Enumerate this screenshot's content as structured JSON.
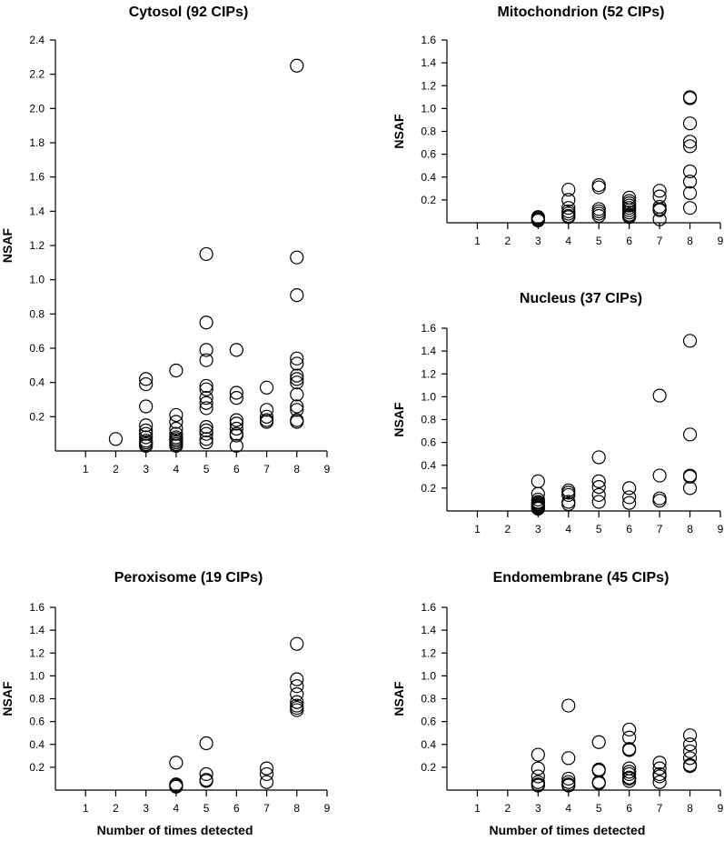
{
  "chart_data": [
    {
      "type": "scatter",
      "title": "Cytosol (92 CIPs)",
      "xlabel": "",
      "ylabel": "NSAF",
      "xlim": [
        0,
        9
      ],
      "ylim": [
        0,
        2.4
      ],
      "xticks": [
        "1",
        "2",
        "3",
        "4",
        "5",
        "6",
        "7",
        "8",
        "9"
      ],
      "yticks": [
        "0.2",
        "0.4",
        "0.6",
        "0.8",
        "1.0",
        "1.2",
        "1.4",
        "1.6",
        "1.8",
        "2.0",
        "2.2",
        "2.4"
      ],
      "points": [
        [
          2,
          0.07
        ],
        [
          3,
          0.42
        ],
        [
          3,
          0.39
        ],
        [
          3,
          0.26
        ],
        [
          3,
          0.15
        ],
        [
          3,
          0.12
        ],
        [
          3,
          0.1
        ],
        [
          3,
          0.08
        ],
        [
          3,
          0.06
        ],
        [
          3,
          0.05
        ],
        [
          3,
          0.04
        ],
        [
          3,
          0.03
        ],
        [
          4,
          0.47
        ],
        [
          4,
          0.21
        ],
        [
          4,
          0.17
        ],
        [
          4,
          0.13
        ],
        [
          4,
          0.1
        ],
        [
          4,
          0.08
        ],
        [
          4,
          0.07
        ],
        [
          4,
          0.06
        ],
        [
          4,
          0.05
        ],
        [
          4,
          0.04
        ],
        [
          4,
          0.03
        ],
        [
          5,
          1.15
        ],
        [
          5,
          0.75
        ],
        [
          5,
          0.59
        ],
        [
          5,
          0.53
        ],
        [
          5,
          0.38
        ],
        [
          5,
          0.36
        ],
        [
          5,
          0.31
        ],
        [
          5,
          0.28
        ],
        [
          5,
          0.25
        ],
        [
          5,
          0.14
        ],
        [
          5,
          0.12
        ],
        [
          5,
          0.1
        ],
        [
          5,
          0.07
        ],
        [
          5,
          0.05
        ],
        [
          6,
          0.59
        ],
        [
          6,
          0.34
        ],
        [
          6,
          0.31
        ],
        [
          6,
          0.18
        ],
        [
          6,
          0.16
        ],
        [
          6,
          0.13
        ],
        [
          6,
          0.1
        ],
        [
          6,
          0.09
        ],
        [
          6,
          0.03
        ],
        [
          7,
          0.37
        ],
        [
          7,
          0.24
        ],
        [
          7,
          0.2
        ],
        [
          7,
          0.18
        ],
        [
          7,
          0.17
        ],
        [
          8,
          2.25
        ],
        [
          8,
          1.13
        ],
        [
          8,
          0.91
        ],
        [
          8,
          0.54
        ],
        [
          8,
          0.51
        ],
        [
          8,
          0.44
        ],
        [
          8,
          0.42
        ],
        [
          8,
          0.4
        ],
        [
          8,
          0.33
        ],
        [
          8,
          0.26
        ],
        [
          8,
          0.24
        ],
        [
          8,
          0.18
        ],
        [
          8,
          0.17
        ]
      ]
    },
    {
      "type": "scatter",
      "title": "Mitochondrion (52 CIPs)",
      "xlabel": "",
      "ylabel": "NSAF",
      "xlim": [
        0,
        9
      ],
      "ylim": [
        0,
        1.6
      ],
      "xticks": [
        "1",
        "2",
        "3",
        "4",
        "5",
        "6",
        "7",
        "8",
        "9"
      ],
      "yticks": [
        "0.2",
        "0.4",
        "0.6",
        "0.8",
        "1.0",
        "1.2",
        "1.4",
        "1.6"
      ],
      "points": [
        [
          3,
          0.05
        ],
        [
          3,
          0.04
        ],
        [
          3,
          0.03
        ],
        [
          3,
          0.02
        ],
        [
          4,
          0.29
        ],
        [
          4,
          0.2
        ],
        [
          4,
          0.13
        ],
        [
          4,
          0.1
        ],
        [
          4,
          0.08
        ],
        [
          4,
          0.06
        ],
        [
          4,
          0.05
        ],
        [
          5,
          0.33
        ],
        [
          5,
          0.31
        ],
        [
          5,
          0.12
        ],
        [
          5,
          0.1
        ],
        [
          5,
          0.08
        ],
        [
          5,
          0.06
        ],
        [
          6,
          0.22
        ],
        [
          6,
          0.19
        ],
        [
          6,
          0.17
        ],
        [
          6,
          0.15
        ],
        [
          6,
          0.13
        ],
        [
          6,
          0.11
        ],
        [
          6,
          0.09
        ],
        [
          6,
          0.07
        ],
        [
          6,
          0.06
        ],
        [
          6,
          0.05
        ],
        [
          7,
          0.28
        ],
        [
          7,
          0.23
        ],
        [
          7,
          0.14
        ],
        [
          7,
          0.12
        ],
        [
          7,
          0.11
        ],
        [
          7,
          0.03
        ],
        [
          8,
          1.1
        ],
        [
          8,
          1.09
        ],
        [
          8,
          0.87
        ],
        [
          8,
          0.71
        ],
        [
          8,
          0.67
        ],
        [
          8,
          0.45
        ],
        [
          8,
          0.36
        ],
        [
          8,
          0.26
        ],
        [
          8,
          0.13
        ]
      ]
    },
    {
      "type": "scatter",
      "title": "Nucleus (37 CIPs)",
      "xlabel": "",
      "ylabel": "NSAF",
      "xlim": [
        0,
        9
      ],
      "ylim": [
        0,
        1.6
      ],
      "xticks": [
        "1",
        "2",
        "3",
        "4",
        "5",
        "6",
        "7",
        "8",
        "9"
      ],
      "yticks": [
        "0.2",
        "0.4",
        "0.6",
        "0.8",
        "1.0",
        "1.2",
        "1.4",
        "1.6"
      ],
      "points": [
        [
          3,
          0.26
        ],
        [
          3,
          0.15
        ],
        [
          3,
          0.1
        ],
        [
          3,
          0.08
        ],
        [
          3,
          0.07
        ],
        [
          3,
          0.06
        ],
        [
          3,
          0.05
        ],
        [
          3,
          0.04
        ],
        [
          3,
          0.03
        ],
        [
          3,
          0.02
        ],
        [
          4,
          0.18
        ],
        [
          4,
          0.16
        ],
        [
          4,
          0.14
        ],
        [
          4,
          0.08
        ],
        [
          4,
          0.06
        ],
        [
          5,
          0.47
        ],
        [
          5,
          0.26
        ],
        [
          5,
          0.21
        ],
        [
          5,
          0.14
        ],
        [
          5,
          0.08
        ],
        [
          6,
          0.2
        ],
        [
          6,
          0.12
        ],
        [
          6,
          0.07
        ],
        [
          7,
          1.01
        ],
        [
          7,
          0.31
        ],
        [
          7,
          0.11
        ],
        [
          7,
          0.09
        ],
        [
          8,
          1.49
        ],
        [
          8,
          0.67
        ],
        [
          8,
          0.31
        ],
        [
          8,
          0.3
        ],
        [
          8,
          0.2
        ]
      ]
    },
    {
      "type": "scatter",
      "title": "Peroxisome (19 CIPs)",
      "xlabel": "Number of times detected",
      "ylabel": "NSAF",
      "xlim": [
        0,
        9
      ],
      "ylim": [
        0,
        1.6
      ],
      "xticks": [
        "1",
        "2",
        "3",
        "4",
        "5",
        "6",
        "7",
        "8",
        "9"
      ],
      "yticks": [
        "0.2",
        "0.4",
        "0.6",
        "0.8",
        "1.0",
        "1.2",
        "1.4",
        "1.6"
      ],
      "points": [
        [
          4,
          0.24
        ],
        [
          4,
          0.05
        ],
        [
          4,
          0.04
        ],
        [
          4,
          0.03
        ],
        [
          5,
          0.41
        ],
        [
          5,
          0.14
        ],
        [
          5,
          0.09
        ],
        [
          5,
          0.08
        ],
        [
          7,
          0.19
        ],
        [
          7,
          0.14
        ],
        [
          7,
          0.07
        ],
        [
          8,
          1.28
        ],
        [
          8,
          0.97
        ],
        [
          8,
          0.91
        ],
        [
          8,
          0.84
        ],
        [
          8,
          0.77
        ],
        [
          8,
          0.74
        ],
        [
          8,
          0.72
        ],
        [
          8,
          0.7
        ]
      ]
    },
    {
      "type": "scatter",
      "title": "Endomembrane (45 CIPs)",
      "xlabel": "Number of times detected",
      "ylabel": "NSAF",
      "xlim": [
        0,
        9
      ],
      "ylim": [
        0,
        1.6
      ],
      "xticks": [
        "1",
        "2",
        "3",
        "4",
        "5",
        "6",
        "7",
        "8",
        "9"
      ],
      "yticks": [
        "0.2",
        "0.4",
        "0.6",
        "0.8",
        "1.0",
        "1.2",
        "1.4",
        "1.6"
      ],
      "points": [
        [
          3,
          0.31
        ],
        [
          3,
          0.19
        ],
        [
          3,
          0.12
        ],
        [
          3,
          0.07
        ],
        [
          3,
          0.05
        ],
        [
          3,
          0.04
        ],
        [
          4,
          0.74
        ],
        [
          4,
          0.28
        ],
        [
          4,
          0.1
        ],
        [
          4,
          0.07
        ],
        [
          4,
          0.05
        ],
        [
          4,
          0.04
        ],
        [
          5,
          0.42
        ],
        [
          5,
          0.18
        ],
        [
          5,
          0.17
        ],
        [
          5,
          0.07
        ],
        [
          5,
          0.06
        ],
        [
          6,
          0.53
        ],
        [
          6,
          0.46
        ],
        [
          6,
          0.36
        ],
        [
          6,
          0.35
        ],
        [
          6,
          0.19
        ],
        [
          6,
          0.16
        ],
        [
          6,
          0.14
        ],
        [
          6,
          0.11
        ],
        [
          6,
          0.1
        ],
        [
          6,
          0.08
        ],
        [
          7,
          0.24
        ],
        [
          7,
          0.19
        ],
        [
          7,
          0.14
        ],
        [
          7,
          0.12
        ],
        [
          7,
          0.07
        ],
        [
          8,
          0.48
        ],
        [
          8,
          0.4
        ],
        [
          8,
          0.34
        ],
        [
          8,
          0.28
        ],
        [
          8,
          0.22
        ],
        [
          8,
          0.21
        ]
      ]
    }
  ]
}
